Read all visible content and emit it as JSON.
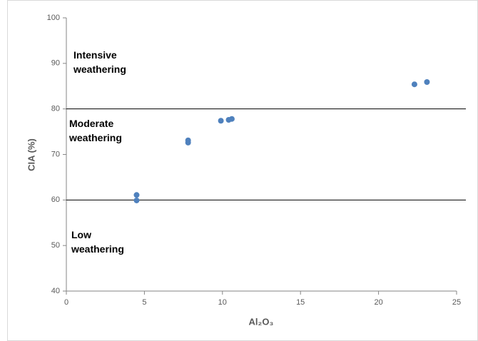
{
  "chart_data": {
    "type": "scatter",
    "x_label": "Al₂O₃",
    "y_label": "CIA (%)",
    "series": [
      {
        "color": "#4f81bd",
        "x": [
          4.5,
          4.5,
          7.8,
          7.8,
          9.9,
          10.4,
          10.6,
          22.3,
          23.1
        ],
        "values": [
          61.1,
          59.9,
          72.6,
          73.1,
          77.4,
          77.6,
          77.8,
          85.4,
          85.9
        ]
      }
    ],
    "xlim": [
      0,
      25
    ],
    "xticks": [
      0,
      5,
      10,
      15,
      20,
      25
    ],
    "ylim": [
      40,
      100
    ],
    "yticks": [
      40,
      50,
      60,
      70,
      80,
      90,
      100
    ],
    "reference_lines": [
      60,
      80
    ],
    "annotations": [
      [
        "Intensive",
        "weathering"
      ],
      [
        "Moderate",
        "weathering"
      ],
      [
        "Low",
        "weathering"
      ]
    ]
  }
}
